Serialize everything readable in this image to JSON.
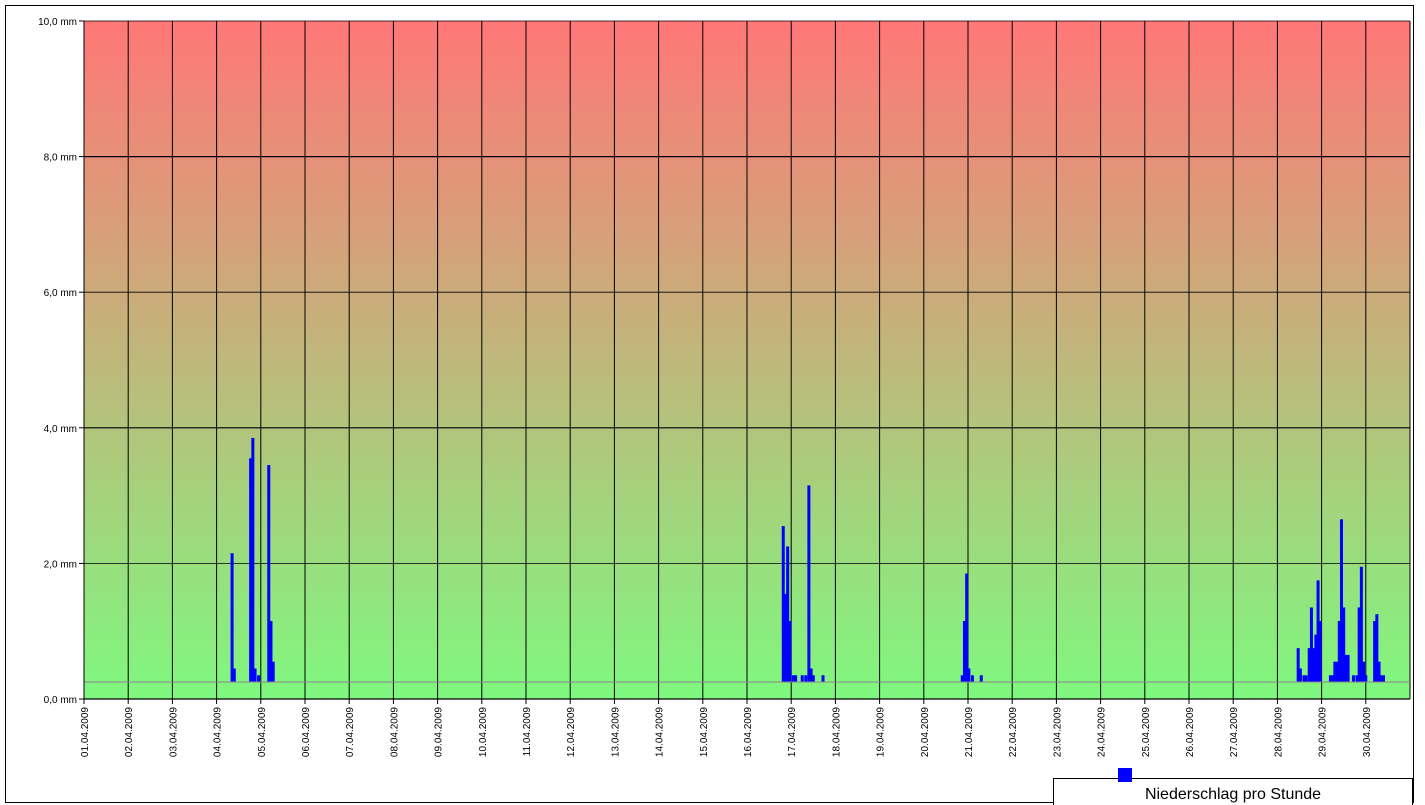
{
  "chart_data": {
    "type": "bar",
    "title": "",
    "ylabel": "",
    "xlabel": "",
    "ylim": [
      0,
      10
    ],
    "y_ticks": [
      "0,0 mm",
      "2,0 mm",
      "4,0 mm",
      "6,0 mm",
      "8,0 mm",
      "10,0 mm"
    ],
    "x_tick_labels": [
      "01.04.2009",
      "02.04.2009",
      "03.04.2009",
      "04.04.2009",
      "05.04.2009",
      "06.04.2009",
      "07.04.2009",
      "08.04.2009",
      "09.04.2009",
      "10.04.2009",
      "11.04.2009",
      "12.04.2009",
      "13.04.2009",
      "14.04.2009",
      "15.04.2009",
      "16.04.2009",
      "17.04.2009",
      "18.04.2009",
      "19.04.2009",
      "20.04.2009",
      "21.04.2009",
      "22.04.2009",
      "23.04.2009",
      "24.04.2009",
      "25.04.2009",
      "26.04.2009",
      "27.04.2009",
      "28.04.2009",
      "29.04.2009",
      "30.04.2009"
    ],
    "series": [
      {
        "name": "Niederschlag pro Stunde",
        "color": "#0000ff",
        "points": [
          {
            "day": 4.35,
            "value": 2.15
          },
          {
            "day": 4.4,
            "value": 0.45
          },
          {
            "day": 4.77,
            "value": 3.55
          },
          {
            "day": 4.82,
            "value": 3.85
          },
          {
            "day": 4.87,
            "value": 0.45
          },
          {
            "day": 4.95,
            "value": 0.35
          },
          {
            "day": 5.18,
            "value": 3.45
          },
          {
            "day": 5.23,
            "value": 1.15
          },
          {
            "day": 5.28,
            "value": 0.55
          },
          {
            "day": 16.82,
            "value": 2.55
          },
          {
            "day": 16.87,
            "value": 1.55
          },
          {
            "day": 16.92,
            "value": 2.25
          },
          {
            "day": 16.97,
            "value": 1.15
          },
          {
            "day": 17.05,
            "value": 0.35
          },
          {
            "day": 17.1,
            "value": 0.35
          },
          {
            "day": 17.25,
            "value": 0.35
          },
          {
            "day": 17.33,
            "value": 0.35
          },
          {
            "day": 17.4,
            "value": 3.15
          },
          {
            "day": 17.45,
            "value": 0.45
          },
          {
            "day": 17.5,
            "value": 0.35
          },
          {
            "day": 17.72,
            "value": 0.35
          },
          {
            "day": 20.87,
            "value": 0.35
          },
          {
            "day": 20.92,
            "value": 1.15
          },
          {
            "day": 20.97,
            "value": 1.85
          },
          {
            "day": 21.02,
            "value": 0.45
          },
          {
            "day": 21.1,
            "value": 0.35
          },
          {
            "day": 21.3,
            "value": 0.35
          },
          {
            "day": 28.47,
            "value": 0.75
          },
          {
            "day": 28.52,
            "value": 0.45
          },
          {
            "day": 28.6,
            "value": 0.35
          },
          {
            "day": 28.65,
            "value": 0.35
          },
          {
            "day": 28.72,
            "value": 0.75
          },
          {
            "day": 28.77,
            "value": 1.35
          },
          {
            "day": 28.82,
            "value": 0.75
          },
          {
            "day": 28.87,
            "value": 0.95
          },
          {
            "day": 28.92,
            "value": 1.75
          },
          {
            "day": 28.97,
            "value": 1.15
          },
          {
            "day": 29.2,
            "value": 0.35
          },
          {
            "day": 29.25,
            "value": 0.35
          },
          {
            "day": 29.3,
            "value": 0.55
          },
          {
            "day": 29.35,
            "value": 0.55
          },
          {
            "day": 29.4,
            "value": 1.15
          },
          {
            "day": 29.45,
            "value": 2.65
          },
          {
            "day": 29.5,
            "value": 1.35
          },
          {
            "day": 29.55,
            "value": 0.65
          },
          {
            "day": 29.6,
            "value": 0.65
          },
          {
            "day": 29.72,
            "value": 0.35
          },
          {
            "day": 29.8,
            "value": 0.35
          },
          {
            "day": 29.85,
            "value": 1.35
          },
          {
            "day": 29.9,
            "value": 1.95
          },
          {
            "day": 29.95,
            "value": 0.55
          },
          {
            "day": 30.0,
            "value": 0.35
          },
          {
            "day": 30.2,
            "value": 1.15
          },
          {
            "day": 30.25,
            "value": 1.25
          },
          {
            "day": 30.3,
            "value": 0.55
          },
          {
            "day": 30.35,
            "value": 0.35
          },
          {
            "day": 30.4,
            "value": 0.35
          }
        ]
      }
    ],
    "reference_line_value": 0.25,
    "background_gradient": {
      "top": "#ff7777",
      "bottom": "#7ff87f"
    },
    "grid": true,
    "legend_position": "bottom-right"
  },
  "legend": {
    "label": "Niederschlag pro Stunde",
    "color": "#0000ff"
  }
}
